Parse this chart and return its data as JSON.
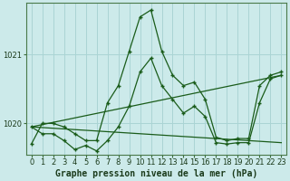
{
  "title": "Graphe pression niveau de la mer (hPa)",
  "bg_color": "#cceaea",
  "line_color": "#1a5c1a",
  "grid_color": "#aad4d4",
  "ylim": [
    1019.55,
    1021.75
  ],
  "yticks": [
    1020,
    1021
  ],
  "xlim": [
    -0.5,
    23.5
  ],
  "xticks": [
    0,
    1,
    2,
    3,
    4,
    5,
    6,
    7,
    8,
    9,
    10,
    11,
    12,
    13,
    14,
    15,
    16,
    17,
    18,
    19,
    20,
    21,
    22,
    23
  ],
  "series": [
    {
      "x": [
        0,
        1,
        2,
        3,
        4,
        5,
        6,
        7,
        8,
        9,
        10,
        11,
        12,
        13,
        14,
        15,
        16,
        17,
        18,
        19,
        20,
        21,
        22,
        23
      ],
      "y": [
        1019.7,
        1020.0,
        1020.0,
        1019.95,
        1019.85,
        1019.75,
        1019.75,
        1020.3,
        1020.55,
        1021.05,
        1021.55,
        1021.65,
        1021.05,
        1020.7,
        1020.55,
        1020.6,
        1020.35,
        1019.8,
        1019.75,
        1019.78,
        1019.78,
        1020.55,
        1020.7,
        1020.75
      ]
    },
    {
      "x": [
        0,
        1,
        2,
        3,
        4,
        5,
        6,
        7,
        8,
        9,
        10,
        11,
        12,
        13,
        14,
        15,
        16,
        17,
        18,
        19,
        20,
        21,
        22,
        23
      ],
      "y": [
        1019.95,
        1019.85,
        1019.85,
        1019.75,
        1019.62,
        1019.68,
        1019.6,
        1019.75,
        1019.95,
        1020.25,
        1020.75,
        1020.95,
        1020.55,
        1020.35,
        1020.15,
        1020.25,
        1020.1,
        1019.72,
        1019.7,
        1019.72,
        1019.72,
        1020.3,
        1020.65,
        1020.7
      ]
    },
    {
      "x": [
        0,
        23
      ],
      "y": [
        1019.95,
        1020.7
      ]
    },
    {
      "x": [
        0,
        23
      ],
      "y": [
        1019.95,
        1019.72
      ]
    }
  ],
  "xlabel_fontsize": 7,
  "tick_fontsize": 6,
  "ylabel_fontsize": 6
}
